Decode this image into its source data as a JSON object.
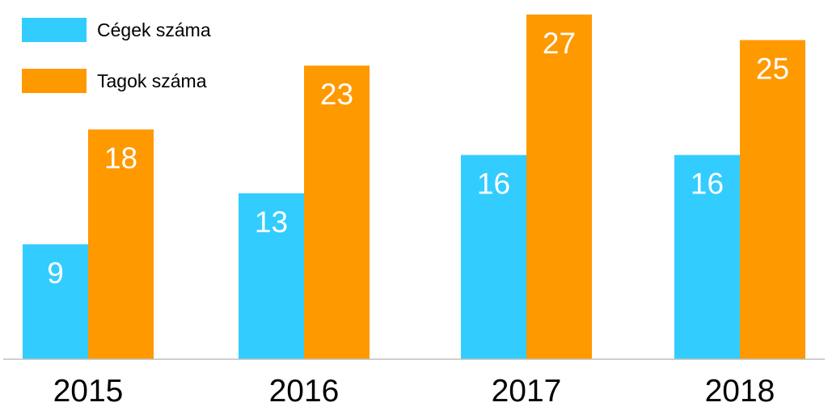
{
  "chart_data": {
    "type": "bar",
    "title": "",
    "xlabel": "",
    "ylabel": "",
    "categories": [
      "2015",
      "2016",
      "2017",
      "2018"
    ],
    "series": [
      {
        "name": "Cégek száma",
        "color": "#33ccff",
        "values": [
          9,
          13,
          16,
          16
        ]
      },
      {
        "name": "Tagok száma",
        "color": "#ff9900",
        "values": [
          18,
          23,
          27,
          25
        ]
      }
    ],
    "ylim": [
      0,
      27
    ],
    "grid": false,
    "legend_position": "top-left",
    "data_labels": true
  }
}
